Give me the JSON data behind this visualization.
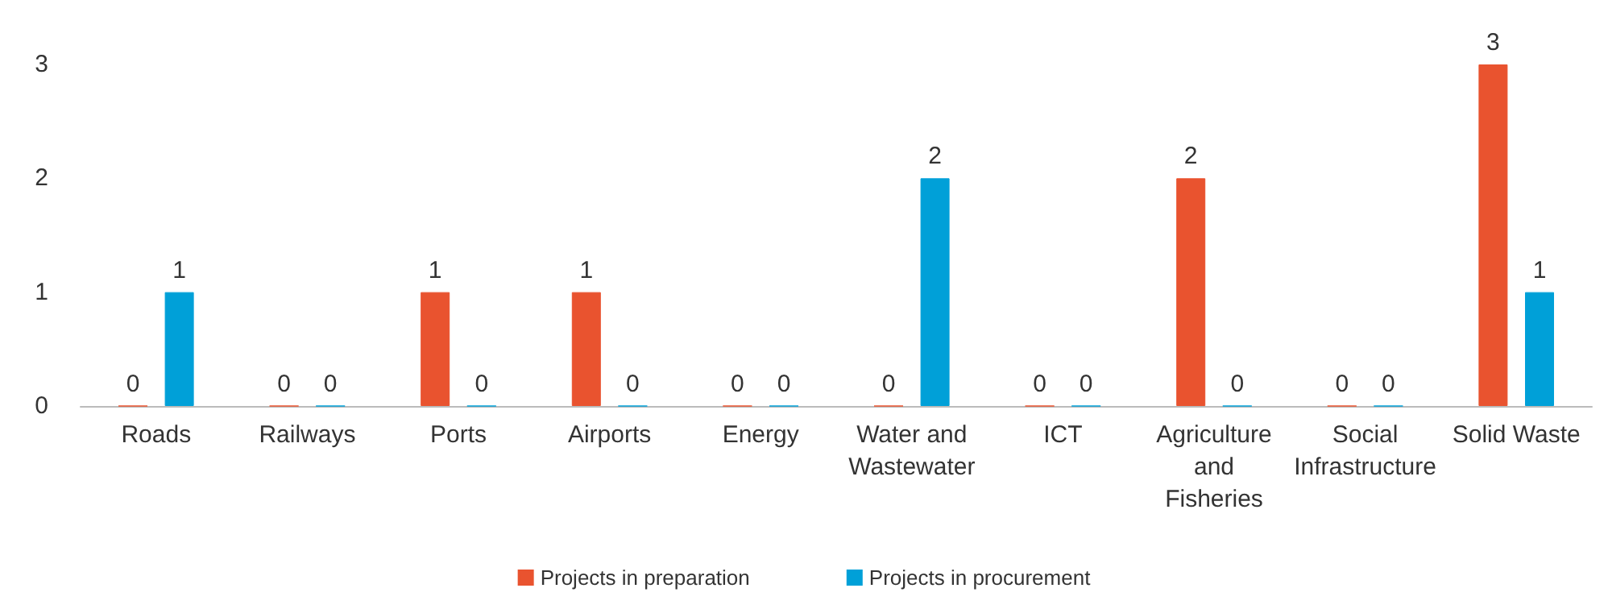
{
  "chart_data": {
    "type": "bar",
    "categories": [
      "Roads",
      "Railways",
      "Ports",
      "Airports",
      "Energy",
      "Water and\nWastewater",
      "ICT",
      "Agriculture\nand\nFisheries",
      "Social\nInfrastructure",
      "Solid Waste"
    ],
    "series": [
      {
        "name": "Projects in preparation",
        "color": "#e9532f",
        "values": [
          0,
          0,
          1,
          1,
          0,
          0,
          0,
          2,
          0,
          3
        ]
      },
      {
        "name": "Projects in procurement",
        "color": "#00a0d8",
        "values": [
          1,
          0,
          0,
          0,
          0,
          2,
          0,
          0,
          0,
          1
        ]
      }
    ],
    "ylim": [
      0,
      3
    ],
    "yticks": [
      0,
      1,
      2,
      3
    ],
    "grid": false,
    "legend": "bottom",
    "data_labels": true
  }
}
